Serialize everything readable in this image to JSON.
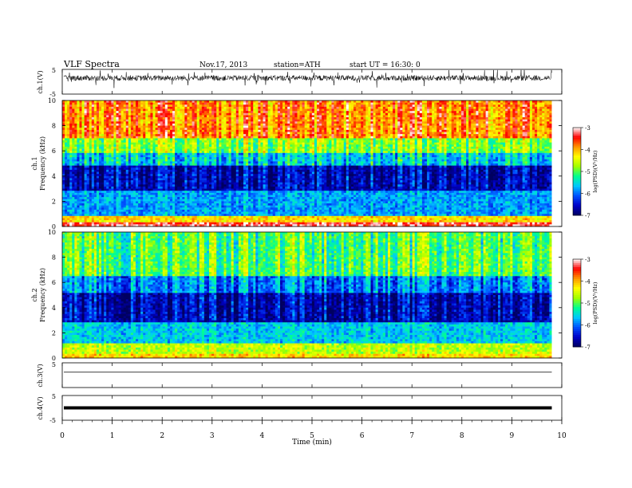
{
  "header": {
    "title": "VLF Spectra",
    "date": "Nov.17, 2013",
    "station": "station=ATH",
    "start": "start  UT =   16:30: 0"
  },
  "chart_data": [
    {
      "type": "line",
      "panel": "ch1-waveform",
      "ylabel": "ch.1(V)",
      "ylim": [
        -5,
        5
      ],
      "yticks": [
        "5",
        "-5"
      ],
      "description_series": [
        {
          "x": [
            0,
            9.8
          ],
          "y": [
            1.5,
            1.5
          ]
        }
      ]
    },
    {
      "type": "heatmap",
      "panel": "ch1-spectrogram",
      "ylabel": "ch.1\nFrequency (kHz)",
      "ylim": [
        0,
        10
      ],
      "yticks": [
        "0",
        "2",
        "4",
        "6",
        "8",
        "10"
      ],
      "x_range_min": [
        0,
        9.8
      ],
      "colorbar": {
        "label": "log(PSD)(V²/Hz)",
        "range": [
          -7,
          -3
        ],
        "ticks": [
          "-3",
          "-4",
          "-5",
          "-6",
          "-7"
        ]
      },
      "bands_logpsd": [
        {
          "f": [
            0,
            0.3
          ],
          "v": -3.3
        },
        {
          "f": [
            0.3,
            0.8
          ],
          "v": -4.2
        },
        {
          "f": [
            0.8,
            2.8
          ],
          "v": -5.8
        },
        {
          "f": [
            2.8,
            4.8
          ],
          "v": -6.6
        },
        {
          "f": [
            4.8,
            5.8
          ],
          "v": -5.6
        },
        {
          "f": [
            5.8,
            7.0
          ],
          "v": -4.8
        },
        {
          "f": [
            7.0,
            10.0
          ],
          "v": -3.8
        }
      ]
    },
    {
      "type": "heatmap",
      "panel": "ch2-spectrogram",
      "ylabel": "ch.2\nFrequency (kHz)",
      "ylim": [
        0,
        10
      ],
      "yticks": [
        "0",
        "2",
        "4",
        "6",
        "8",
        "10"
      ],
      "x_range_min": [
        0,
        9.8
      ],
      "colorbar": {
        "label": "log(PSD)(V²/Hz)",
        "range": [
          -7,
          -3
        ],
        "ticks": [
          "-3",
          "-4",
          "-5",
          "-6",
          "-7"
        ]
      },
      "bands_logpsd": [
        {
          "f": [
            0,
            0.3
          ],
          "v": -4.2
        },
        {
          "f": [
            0.3,
            1.2
          ],
          "v": -4.6
        },
        {
          "f": [
            1.2,
            2.8
          ],
          "v": -5.6
        },
        {
          "f": [
            2.8,
            5.2
          ],
          "v": -6.6
        },
        {
          "f": [
            5.2,
            6.5
          ],
          "v": -5.9
        },
        {
          "f": [
            6.5,
            10.0
          ],
          "v": -5.0
        }
      ]
    },
    {
      "type": "line",
      "panel": "ch3-waveform",
      "ylabel": "ch.3(V)",
      "ylim": [
        -5,
        5
      ],
      "yticks": [
        "5"
      ],
      "series": [
        {
          "x": [
            0,
            9.8
          ],
          "y": [
            1.2,
            1.2
          ]
        }
      ]
    },
    {
      "type": "line",
      "panel": "ch4-waveform",
      "ylabel": "ch.4(V)",
      "ylim": [
        -5,
        5
      ],
      "yticks": [
        "5",
        "-5"
      ],
      "series": [
        {
          "x": [
            0,
            9.8
          ],
          "y": [
            0,
            0
          ]
        }
      ]
    }
  ],
  "xaxis": {
    "label": "Time  (min)",
    "range": [
      0,
      10
    ],
    "ticks": [
      "0",
      "1",
      "2",
      "3",
      "4",
      "5",
      "6",
      "7",
      "8",
      "9",
      "10"
    ]
  },
  "colors": {
    "scale": [
      "#000060",
      "#0000c8",
      "#0050ff",
      "#00c8ff",
      "#00ff90",
      "#a0ff00",
      "#ffff00",
      "#ff9600",
      "#ff0000",
      "#ffffff"
    ]
  }
}
